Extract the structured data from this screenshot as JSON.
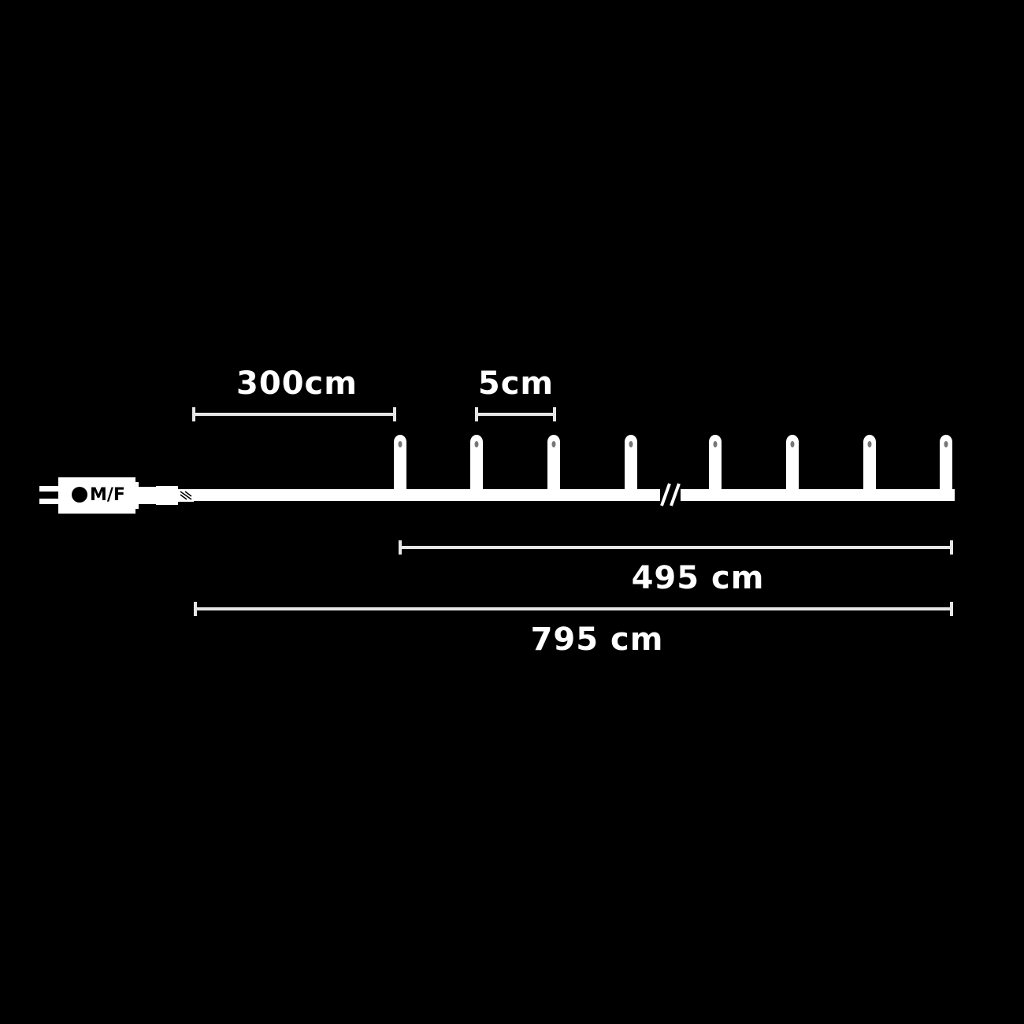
{
  "colors": {
    "background": "#000000",
    "cable": "#ffffff",
    "dimension_line": "#e6e6e6"
  },
  "plug": {
    "label": "M/F"
  },
  "dimensions": {
    "lead_cable": "300cm",
    "bulb_spacing": "5cm",
    "lit_length": "495 cm",
    "total_length": "795 cm"
  }
}
